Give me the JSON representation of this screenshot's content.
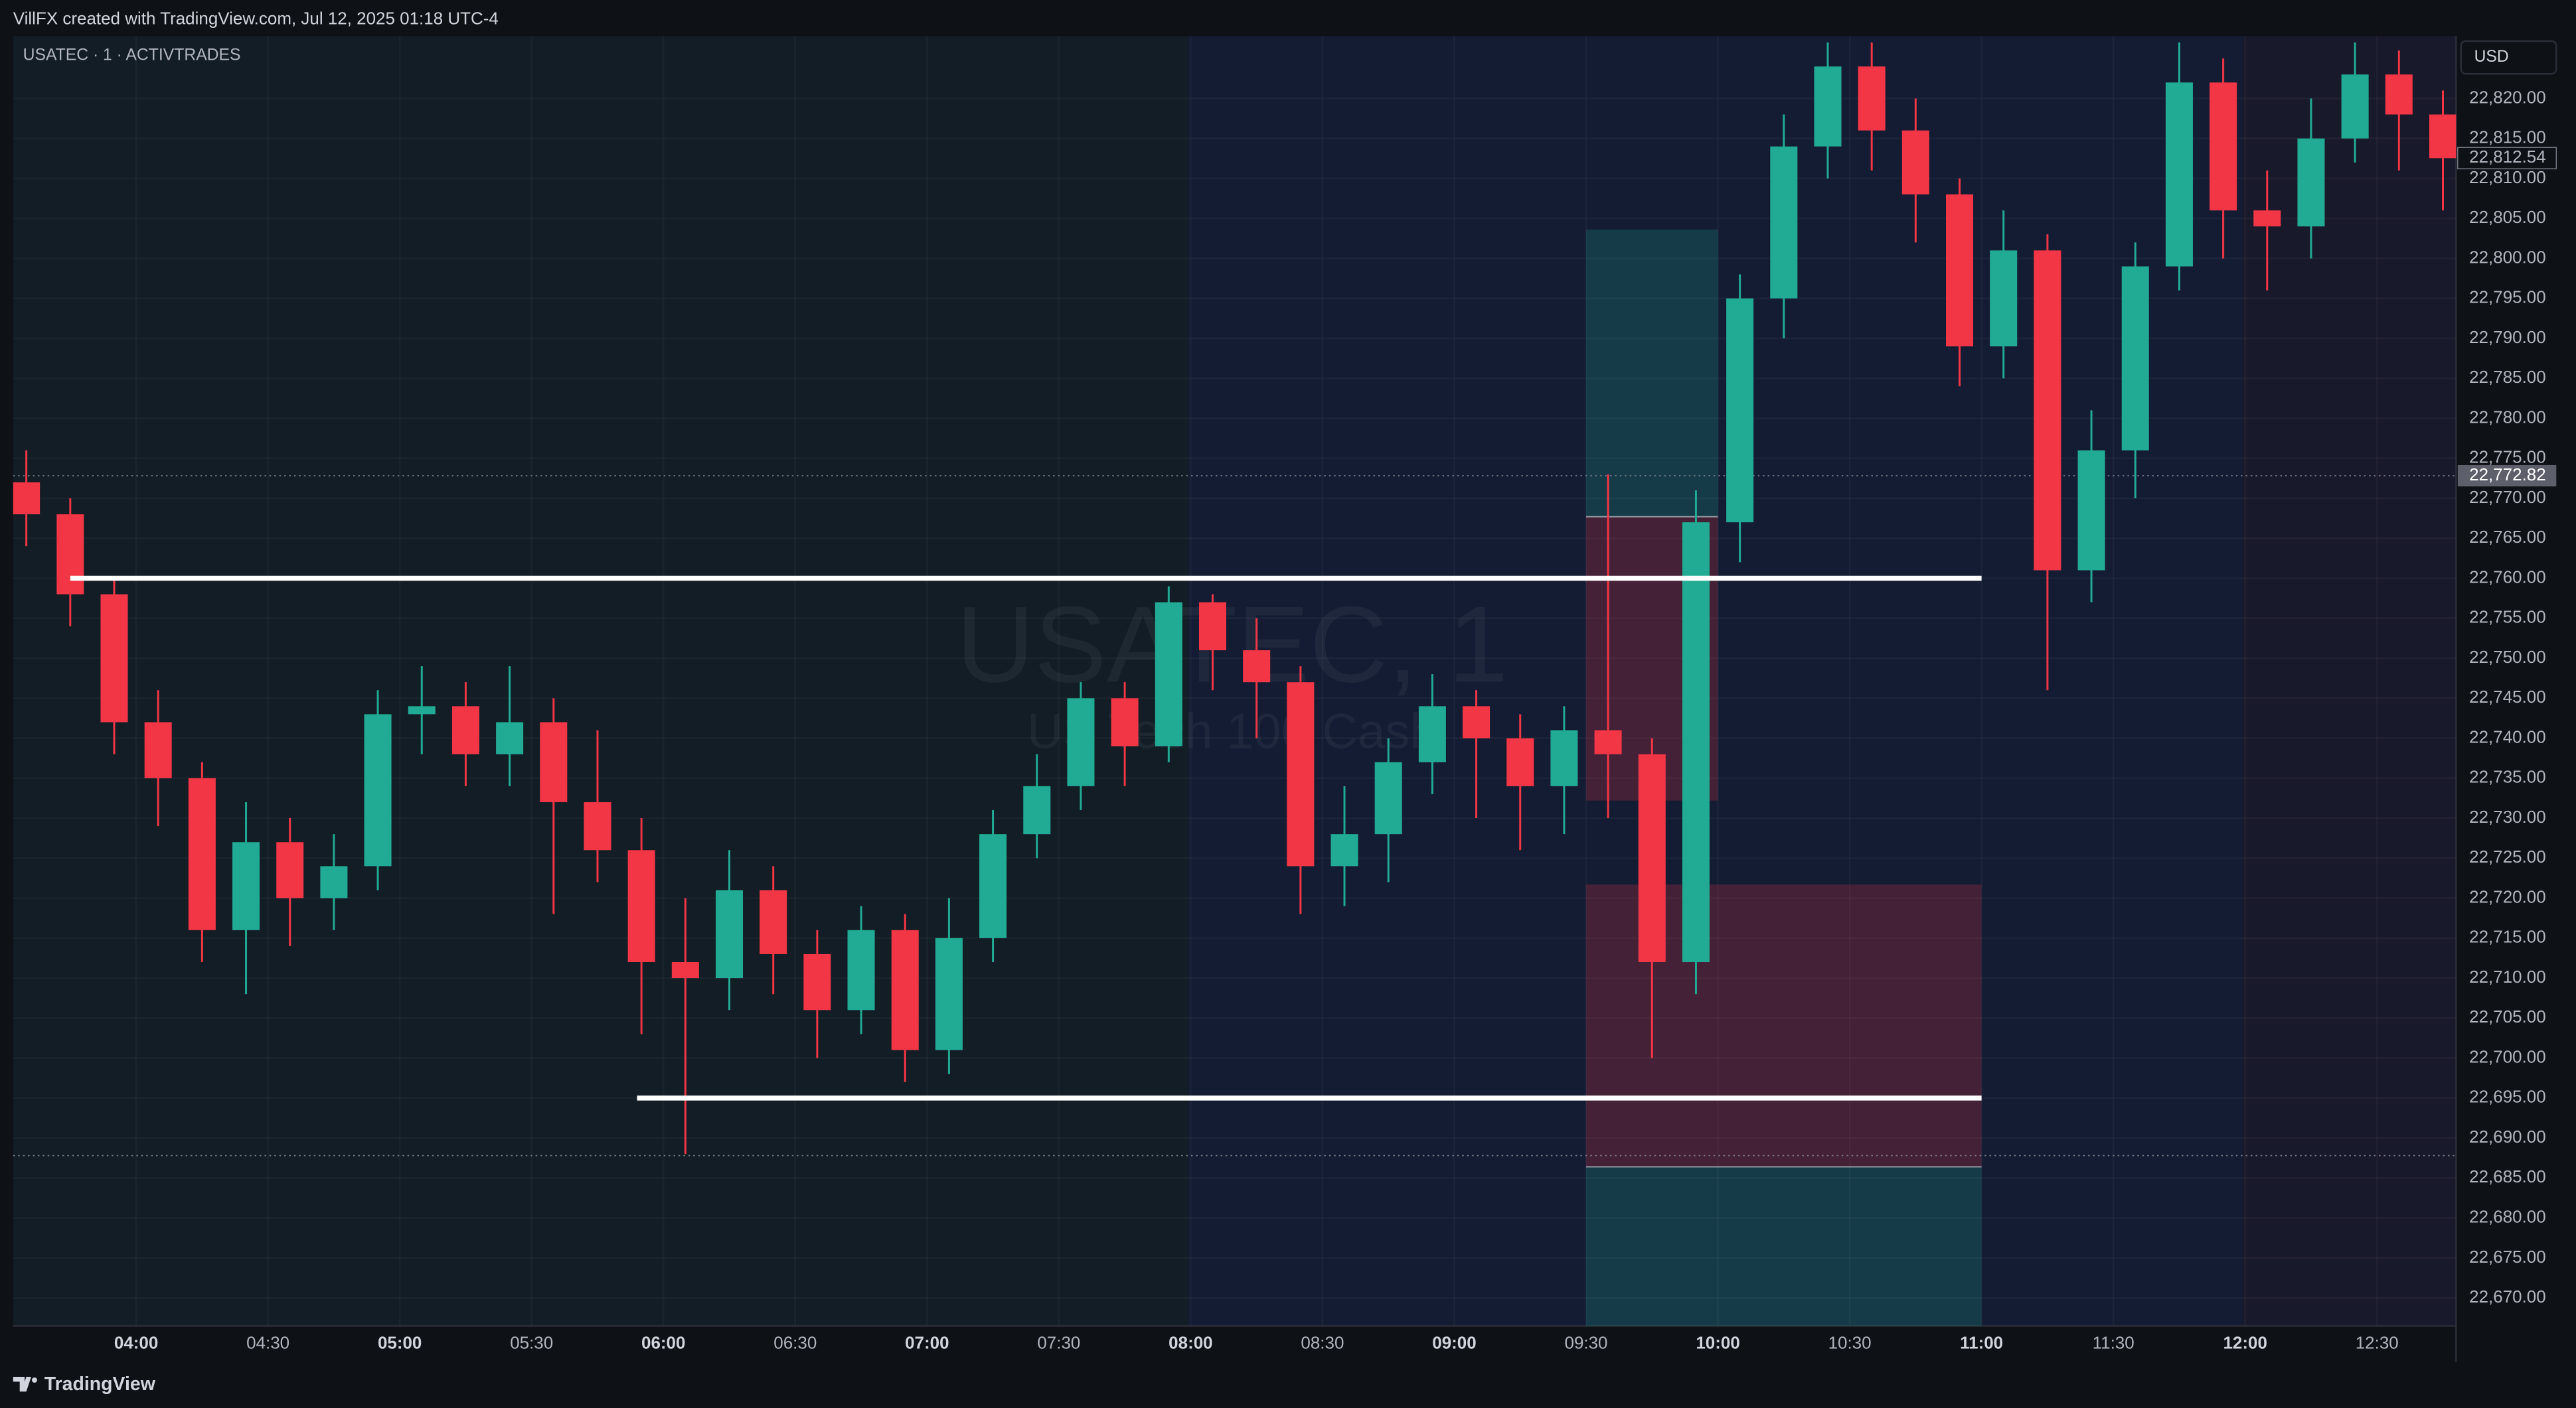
{
  "chart_data": {
    "type": "candlestick",
    "header": "VillFX created with TradingView.com, Jul 12, 2025 01:18 UTC-4",
    "title": "USATEC · 1 · ACTIVTRADES",
    "currency": "USD",
    "watermark": "USATEC, 1",
    "watermark_subtitle": "US Tech 100 Cash",
    "brand": "TradingView",
    "up_color": "#22ab94",
    "down_color": "#f23645",
    "grid": true,
    "x": [
      "03:35",
      "03:45",
      "03:55",
      "04:05",
      "04:15",
      "04:25",
      "04:35",
      "04:45",
      "04:55",
      "05:05",
      "05:15",
      "05:25",
      "05:35",
      "05:45",
      "05:55",
      "06:05",
      "06:15",
      "06:25",
      "06:35",
      "06:45",
      "06:55",
      "07:05",
      "07:15",
      "07:25",
      "07:35",
      "07:45",
      "07:55",
      "08:05",
      "08:15",
      "08:25",
      "08:35",
      "08:45",
      "08:55",
      "09:05",
      "09:15",
      "09:25",
      "09:35",
      "09:45",
      "09:55",
      "10:05",
      "10:15",
      "10:25",
      "10:35",
      "10:45",
      "10:55",
      "11:05",
      "11:15",
      "11:25",
      "11:35",
      "11:45",
      "11:55",
      "12:05",
      "12:15",
      "12:25",
      "12:35",
      "12:45"
    ],
    "open": [
      22772,
      22768,
      22758,
      22742,
      22735,
      22716,
      22727,
      22720,
      22724,
      22743,
      22744,
      22738,
      22742,
      22732,
      22726,
      22712,
      22710,
      22721,
      22713,
      22706,
      22716,
      22701,
      22715,
      22728,
      22734,
      22745,
      22739,
      22757,
      22751,
      22747,
      22724,
      22728,
      22737,
      22744,
      22740,
      22734,
      22741,
      22738,
      22712,
      22767,
      22795,
      22814,
      22824,
      22816,
      22808,
      22789,
      22801,
      22761,
      22776,
      22799,
      22822,
      22806,
      22804,
      22815,
      22823,
      22818
    ],
    "high": [
      22776,
      22770,
      22760,
      22746,
      22737,
      22732,
      22730,
      22728,
      22746,
      22749,
      22747,
      22749,
      22745,
      22741,
      22730,
      22720,
      22726,
      22724,
      22716,
      22719,
      22718,
      22720,
      22731,
      22738,
      22747,
      22747,
      22759,
      22758,
      22755,
      22749,
      22734,
      22740,
      22748,
      22746,
      22743,
      22744,
      22773,
      22740,
      22771,
      22798,
      22818,
      22827,
      22827,
      22820,
      22810,
      22806,
      22803,
      22781,
      22802,
      22827,
      22825,
      22811,
      22820,
      22827,
      22826,
      22821
    ],
    "low": [
      22764,
      22754,
      22738,
      22729,
      22712,
      22708,
      22714,
      22716,
      22721,
      22738,
      22734,
      22734,
      22718,
      22722,
      22703,
      22688,
      22706,
      22708,
      22700,
      22703,
      22697,
      22698,
      22712,
      22725,
      22731,
      22734,
      22737,
      22746,
      22740,
      22718,
      22719,
      22722,
      22733,
      22730,
      22726,
      22728,
      22730,
      22700,
      22708,
      22762,
      22790,
      22810,
      22811,
      22802,
      22784,
      22785,
      22746,
      22757,
      22770,
      22796,
      22800,
      22796,
      22800,
      22812,
      22811,
      22806
    ],
    "close": [
      22768,
      22758,
      22742,
      22735,
      22716,
      22727,
      22720,
      22724,
      22743,
      22744,
      22738,
      22742,
      22732,
      22726,
      22712,
      22710,
      22721,
      22713,
      22706,
      22716,
      22701,
      22715,
      22728,
      22734,
      22745,
      22739,
      22757,
      22751,
      22747,
      22724,
      22728,
      22737,
      22744,
      22740,
      22734,
      22741,
      22738,
      22712,
      22767,
      22795,
      22814,
      22824,
      22816,
      22808,
      22789,
      22801,
      22761,
      22776,
      22799,
      22822,
      22806,
      22804,
      22815,
      22823,
      22818,
      22812.54
    ],
    "xlim": [
      "03:32",
      "12:48"
    ],
    "xticks": [
      "04:00",
      "04:30",
      "05:00",
      "05:30",
      "06:00",
      "06:30",
      "07:00",
      "07:30",
      "08:00",
      "08:30",
      "09:00",
      "09:30",
      "10:00",
      "10:30",
      "11:00",
      "11:30",
      "12:00",
      "12:30"
    ],
    "ylim": [
      22666.5,
      22827.8
    ],
    "yticks": [
      {
        "value": 22670,
        "label": "22,670.00"
      },
      {
        "value": 22675,
        "label": "22,675.00"
      },
      {
        "value": 22680,
        "label": "22,680.00"
      },
      {
        "value": 22685,
        "label": "22,685.00"
      },
      {
        "value": 22690,
        "label": "22,690.00"
      },
      {
        "value": 22695,
        "label": "22,695.00"
      },
      {
        "value": 22700,
        "label": "22,700.00"
      },
      {
        "value": 22705,
        "label": "22,705.00"
      },
      {
        "value": 22710,
        "label": "22,710.00"
      },
      {
        "value": 22715,
        "label": "22,715.00"
      },
      {
        "value": 22720,
        "label": "22,720.00"
      },
      {
        "value": 22725,
        "label": "22,725.00"
      },
      {
        "value": 22730,
        "label": "22,730.00"
      },
      {
        "value": 22735,
        "label": "22,735.00"
      },
      {
        "value": 22740,
        "label": "22,740.00"
      },
      {
        "value": 22745,
        "label": "22,745.00"
      },
      {
        "value": 22750,
        "label": "22,750.00"
      },
      {
        "value": 22755,
        "label": "22,755.00"
      },
      {
        "value": 22760,
        "label": "22,760.00"
      },
      {
        "value": 22765,
        "label": "22,765.00"
      },
      {
        "value": 22770,
        "label": "22,770.00"
      },
      {
        "value": 22775,
        "label": "22,775.00"
      },
      {
        "value": 22780,
        "label": "22,780.00"
      },
      {
        "value": 22785,
        "label": "22,785.00"
      },
      {
        "value": 22790,
        "label": "22,790.00"
      },
      {
        "value": 22795,
        "label": "22,795.00"
      },
      {
        "value": 22800,
        "label": "22,800.00"
      },
      {
        "value": 22805,
        "label": "22,805.00"
      },
      {
        "value": 22810,
        "label": "22,810.00"
      },
      {
        "value": 22815,
        "label": "22,815.00"
      },
      {
        "value": 22820,
        "label": "22,820.00"
      }
    ],
    "last_price": {
      "value": 22812.54,
      "label": "22,812.54"
    },
    "price_lines": [
      {
        "value": 22772.82,
        "label": "22,772.82"
      },
      {
        "value": 22687.8
      }
    ],
    "levels": [
      {
        "value": 22760,
        "start": "03:45",
        "end": "11:00"
      },
      {
        "value": 22695,
        "start": "05:54",
        "end": "11:00"
      }
    ],
    "positions": [
      {
        "start": "09:30",
        "end": "10:00",
        "entry": 22767.7,
        "target": 22803.6,
        "stop": 22732.2
      },
      {
        "start": "09:30",
        "end": "11:00",
        "entry": 22686.4,
        "target": 22666.5,
        "stop": 22721.7
      }
    ]
  }
}
